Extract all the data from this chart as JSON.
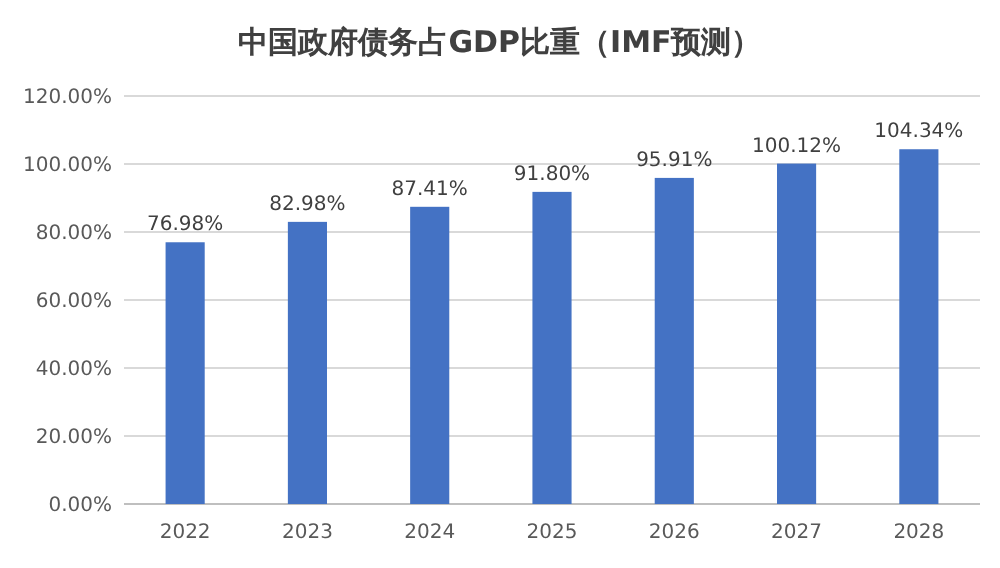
{
  "chart_data": {
    "type": "bar",
    "title": "中国政府债务占GDP比重（IMF预测）",
    "categories": [
      "2022",
      "2023",
      "2024",
      "2025",
      "2026",
      "2027",
      "2028"
    ],
    "values": [
      76.98,
      82.98,
      87.41,
      91.8,
      95.91,
      100.12,
      104.34
    ],
    "value_labels": [
      "76.98%",
      "82.98%",
      "87.41%",
      "91.80%",
      "95.91%",
      "100.12%",
      "104.34%"
    ],
    "color": "#4472c4",
    "ylim": [
      0,
      120
    ],
    "yticks": [
      {
        "value": 0,
        "label": "0.00%"
      },
      {
        "value": 20,
        "label": "20.00%"
      },
      {
        "value": 40,
        "label": "40.00%"
      },
      {
        "value": 60,
        "label": "60.00%"
      },
      {
        "value": 80,
        "label": "80.00%"
      },
      {
        "value": 100,
        "label": "100.00%"
      },
      {
        "value": 120,
        "label": "120.00%"
      }
    ],
    "grid": "y"
  }
}
